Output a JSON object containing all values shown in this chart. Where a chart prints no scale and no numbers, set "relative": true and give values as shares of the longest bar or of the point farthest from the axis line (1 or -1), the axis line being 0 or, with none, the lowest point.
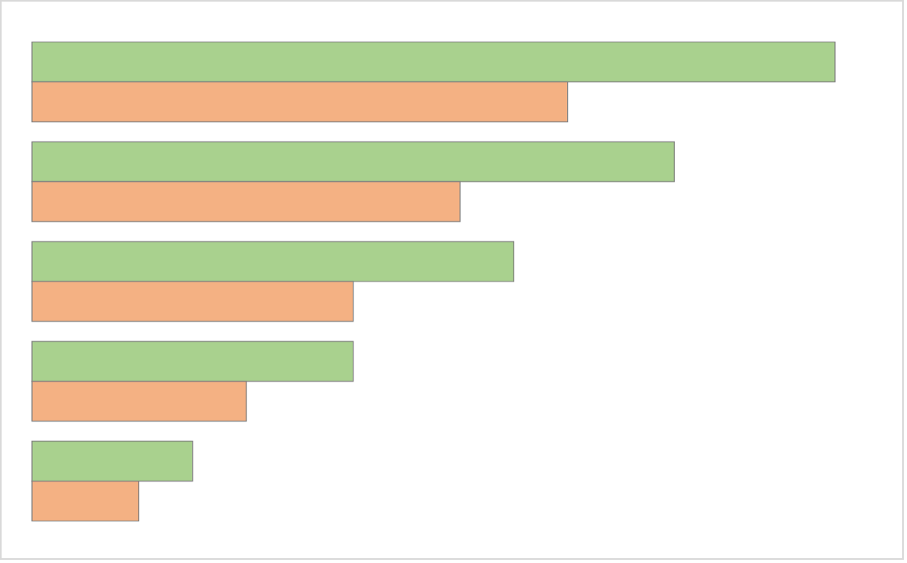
{
  "chart_data": {
    "type": "bar",
    "orientation": "horizontal",
    "relative": true,
    "categories": [
      null,
      null,
      null,
      null,
      null
    ],
    "series": [
      {
        "color": "#a9d18e",
        "values": [
          1,
          0.8,
          0.6,
          0.4,
          0.2
        ]
      },
      {
        "color": "#f4b183",
        "values": [
          0.667,
          0.533,
          0.4,
          0.267,
          0.133
        ]
      }
    ],
    "legend": false
  }
}
